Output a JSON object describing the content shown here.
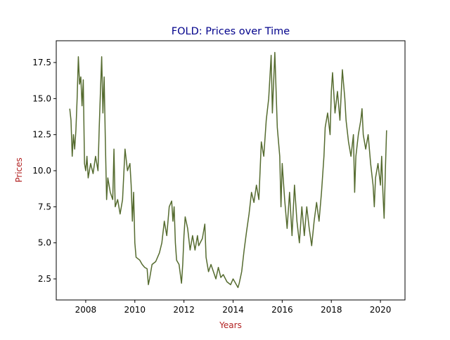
{
  "chart_data": {
    "type": "line",
    "title": "FOLD: Prices over Time",
    "title_color": "#00008b",
    "xlabel": "Years",
    "ylabel": "Prices",
    "label_color": "#b22222",
    "series": [
      {
        "color": "#556b2f",
        "x": [
          2007.35,
          2007.4,
          2007.45,
          2007.5,
          2007.55,
          2007.6,
          2007.65,
          2007.7,
          2007.75,
          2007.8,
          2007.85,
          2007.9,
          2007.95,
          2008.0,
          2008.05,
          2008.1,
          2008.2,
          2008.3,
          2008.4,
          2008.5,
          2008.55,
          2008.6,
          2008.65,
          2008.7,
          2008.75,
          2008.8,
          2008.85,
          2008.9,
          2009.0,
          2009.1,
          2009.15,
          2009.2,
          2009.3,
          2009.4,
          2009.5,
          2009.6,
          2009.7,
          2009.8,
          2009.85,
          2009.9,
          2009.95,
          2010.0,
          2010.05,
          2010.2,
          2010.3,
          2010.4,
          2010.5,
          2010.55,
          2010.6,
          2010.7,
          2010.85,
          2011.0,
          2011.1,
          2011.2,
          2011.3,
          2011.4,
          2011.5,
          2011.55,
          2011.6,
          2011.65,
          2011.7,
          2011.8,
          2011.9,
          2011.95,
          2012.0,
          2012.05,
          2012.15,
          2012.25,
          2012.35,
          2012.45,
          2012.55,
          2012.6,
          2012.75,
          2012.85,
          2012.9,
          2013.0,
          2013.1,
          2013.2,
          2013.3,
          2013.4,
          2013.5,
          2013.6,
          2013.75,
          2013.9,
          2014.0,
          2014.1,
          2014.2,
          2014.25,
          2014.35,
          2014.45,
          2014.55,
          2014.65,
          2014.75,
          2014.85,
          2014.95,
          2015.05,
          2015.15,
          2015.25,
          2015.35,
          2015.45,
          2015.55,
          2015.6,
          2015.7,
          2015.8,
          2015.9,
          2015.95,
          2016.0,
          2016.1,
          2016.2,
          2016.3,
          2016.4,
          2016.5,
          2016.6,
          2016.7,
          2016.8,
          2016.9,
          2017.0,
          2017.1,
          2017.2,
          2017.3,
          2017.4,
          2017.5,
          2017.6,
          2017.7,
          2017.75,
          2017.85,
          2017.95,
          2018.0,
          2018.05,
          2018.15,
          2018.25,
          2018.35,
          2018.45,
          2018.55,
          2018.6,
          2018.7,
          2018.8,
          2018.9,
          2018.95,
          2019.0,
          2019.1,
          2019.2,
          2019.25,
          2019.3,
          2019.4,
          2019.5,
          2019.6,
          2019.7,
          2019.75,
          2019.8,
          2019.9,
          2020.0,
          2020.05,
          2020.1,
          2020.15,
          2020.2,
          2020.25
        ],
        "values": [
          14.3,
          13.5,
          11,
          12.5,
          11.5,
          12.8,
          15,
          17.9,
          16,
          16.5,
          14.5,
          16.3,
          10.5,
          10,
          11,
          9.5,
          10.5,
          9.8,
          11,
          10,
          13,
          15.5,
          17.9,
          14,
          16.5,
          12,
          8,
          9.5,
          8.5,
          8,
          11.5,
          7.5,
          8,
          7,
          8,
          11.5,
          10,
          10.5,
          9,
          6.5,
          8.5,
          5,
          4,
          3.8,
          3.5,
          3.3,
          3.2,
          2.1,
          2.5,
          3.5,
          3.7,
          4.3,
          5,
          6.5,
          5.5,
          7.5,
          7.9,
          6.5,
          7.5,
          5,
          3.8,
          3.5,
          2.2,
          3.5,
          5.5,
          6.8,
          6,
          4.5,
          5.5,
          4.5,
          5.5,
          4.8,
          5.3,
          6.3,
          4,
          3,
          3.5,
          3,
          2.5,
          3.3,
          2.6,
          2.8,
          2.3,
          2.1,
          2.5,
          2.2,
          1.9,
          2.2,
          3,
          4.5,
          5.8,
          7,
          8.5,
          7.8,
          9,
          8,
          12,
          11,
          13.5,
          15,
          18,
          14,
          18.2,
          13,
          11,
          7.5,
          10.5,
          8,
          6,
          8.5,
          5.5,
          9,
          6.5,
          5,
          7.5,
          5.5,
          7.5,
          6,
          4.8,
          6.5,
          7.8,
          6.5,
          8.5,
          11,
          13,
          14,
          12.5,
          15.5,
          16.8,
          14,
          15.5,
          13.5,
          17,
          15,
          13.5,
          12,
          11,
          12.5,
          8.5,
          11,
          12.5,
          13.5,
          14.3,
          12.5,
          11.5,
          12.5,
          10.5,
          9,
          7.5,
          9.5,
          10.5,
          9,
          11,
          8.5,
          6.7,
          10,
          12.8
        ]
      }
    ],
    "xlim": [
      2006.8,
      2021.0
    ],
    "ylim": [
      1.04,
      19.01
    ],
    "xticks": [
      2008,
      2010,
      2012,
      2014,
      2016,
      2018,
      2020
    ],
    "yticks": [
      2.5,
      {
        "value": 5,
        "label": "5.0"
      },
      7.5,
      {
        "value": 10,
        "label": "10.0"
      },
      12.5,
      {
        "value": 15,
        "label": "15.0"
      },
      17.5
    ]
  }
}
